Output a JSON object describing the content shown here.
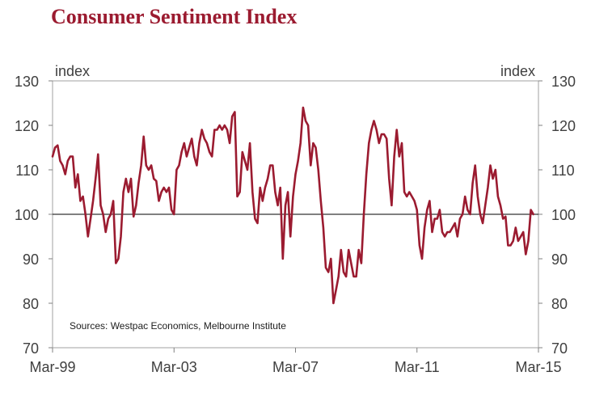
{
  "colors": {
    "title": "#9b1b30",
    "series": "#9b1b30",
    "axis": "#808080",
    "ref_line": "#000000"
  },
  "chart_data": {
    "type": "line",
    "title": "Consumer Sentiment Index",
    "ylabel_left": "index",
    "ylabel_right": "index",
    "ylim": [
      70,
      130
    ],
    "yticks": [
      70,
      80,
      90,
      100,
      110,
      120,
      130
    ],
    "ytick_labels": [
      "70",
      "80",
      "90",
      "100",
      "110",
      "120",
      "130"
    ],
    "xlim": [
      1999.167,
      2015.167
    ],
    "xticks": [
      1999.167,
      2003.167,
      2007.167,
      2011.167,
      2015.167
    ],
    "xtick_labels": [
      "Mar-99",
      "Mar-03",
      "Mar-07",
      "Mar-11",
      "Mar-15"
    ],
    "reference_line": 100,
    "source_note": "Sources: Westpac Economics, Melbourne Institute",
    "series": [
      {
        "name": "Consumer Sentiment Index",
        "start": 1999.167,
        "step": 0.08333,
        "values": [
          113,
          115,
          115.5,
          112,
          111,
          109,
          112,
          113,
          113,
          106,
          109,
          103,
          104,
          100,
          95,
          99,
          103,
          108,
          113.5,
          102,
          100,
          96,
          99,
          100,
          103,
          89,
          90,
          95,
          105,
          108,
          105,
          108,
          99.5,
          102,
          107,
          111,
          117.5,
          111,
          110,
          111,
          108,
          107.5,
          103,
          105,
          106,
          105,
          106,
          101,
          100,
          110,
          111,
          114,
          116,
          113,
          115,
          117,
          113,
          111,
          116,
          119,
          117,
          116,
          114,
          113,
          119,
          119,
          120,
          119,
          120,
          119,
          116,
          122,
          123,
          104,
          105,
          114,
          112,
          110,
          116,
          105,
          99,
          98,
          106,
          103,
          106,
          108,
          111,
          111,
          105,
          102,
          106,
          90,
          102,
          105,
          95,
          104,
          109,
          112,
          116,
          124,
          121,
          120,
          111,
          116,
          115,
          110,
          103,
          97,
          88,
          87,
          90,
          80,
          83,
          86,
          92,
          87,
          86,
          92,
          89,
          86,
          86,
          92,
          89,
          100,
          109,
          116,
          119,
          121,
          119,
          116,
          118,
          118,
          117,
          108,
          102,
          113,
          119,
          113,
          116,
          105,
          104,
          105,
          104,
          103,
          101,
          93,
          90,
          97,
          101,
          103,
          96,
          99,
          99,
          101,
          96,
          95,
          96,
          96,
          97,
          98,
          95,
          99,
          100,
          104,
          101,
          100,
          107,
          111,
          104,
          100,
          98,
          102,
          106,
          111,
          108,
          110,
          104,
          102,
          99,
          99.5,
          93,
          93,
          94,
          97,
          94,
          95,
          96,
          91,
          94,
          101,
          100
        ]
      }
    ]
  }
}
